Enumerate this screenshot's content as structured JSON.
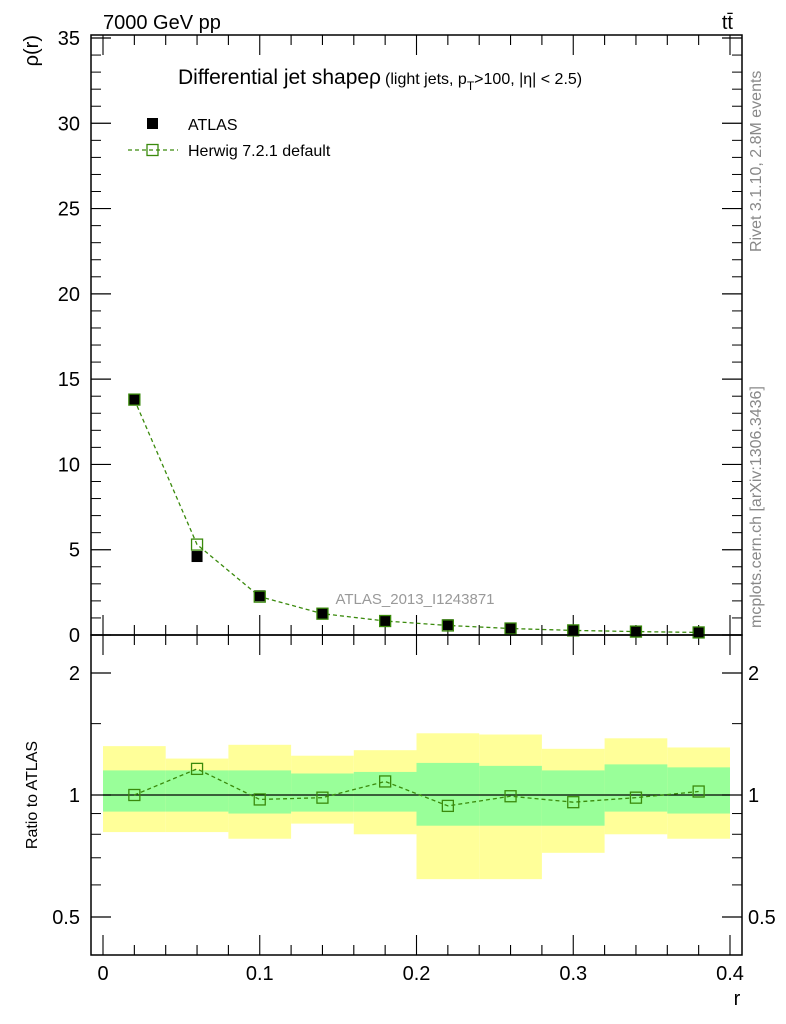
{
  "header": {
    "energy_label": "7000 GeV pp",
    "process_label": "tt̄",
    "side_info_top": "Rivet 3.1.10,  2.8M events",
    "side_info_bottom": "mcplots.cern.ch [arXiv:1306.3436]",
    "watermark": "ATLAS_2013_I1243871"
  },
  "chart_data": [
    {
      "type": "scatter",
      "title_main": "Differential jet shapeρ",
      "title_sub_1": "(light jets, p",
      "title_sub_T": "T",
      "title_sub_2": ">100, |η| < 2.5)",
      "ylabel": "ρ(r)",
      "xlabel": "",
      "xlim": [
        0,
        0.4
      ],
      "ylim": [
        0,
        35
      ],
      "yticks": [
        0,
        5,
        10,
        15,
        20,
        25,
        30,
        35
      ],
      "ytick_labels": [
        "0",
        "5",
        "10",
        "15",
        "20",
        "25",
        "30",
        "35"
      ],
      "grid": false,
      "legend_position": "top-left",
      "x": [
        0.02,
        0.06,
        0.1,
        0.14,
        0.18,
        0.22,
        0.26,
        0.3,
        0.34,
        0.38
      ],
      "series": [
        {
          "name": "ATLAS",
          "color": "#000000",
          "marker": "filled-square",
          "values": [
            13.8,
            4.6,
            2.3,
            1.25,
            0.8,
            0.6,
            0.38,
            0.28,
            0.2,
            0.15
          ]
        },
        {
          "name": "Herwig 7.2.1 default",
          "color": "#3a8a0c",
          "marker": "open-square-dashed-line",
          "values": [
            13.8,
            5.3,
            2.25,
            1.25,
            0.82,
            0.56,
            0.38,
            0.27,
            0.2,
            0.15
          ]
        }
      ]
    },
    {
      "type": "line",
      "ylabel": "Ratio to ATLAS",
      "xlabel": "r",
      "xlim": [
        0,
        0.4
      ],
      "ylim": [
        0.5,
        2.2
      ],
      "log_scale_y": true,
      "xticks": [
        0,
        0.1,
        0.2,
        0.3,
        0.4
      ],
      "xtick_labels": [
        "0",
        "0.1",
        "0.2",
        "0.3",
        "0.4"
      ],
      "yticks": [
        0.5,
        1,
        2
      ],
      "ytick_labels": [
        "0.5",
        "1",
        "2"
      ],
      "reference_line": 1,
      "bin_edges": [
        0,
        0.04,
        0.08,
        0.12,
        0.16,
        0.2,
        0.24,
        0.28,
        0.32,
        0.36,
        0.4
      ],
      "band_colors": {
        "inner": "#99ff99",
        "outer": "#ffff99"
      },
      "stat_band": {
        "lo": [
          0.91,
          0.91,
          0.9,
          0.91,
          0.91,
          0.84,
          0.84,
          0.84,
          0.91,
          0.9
        ],
        "hi": [
          1.15,
          1.15,
          1.15,
          1.13,
          1.14,
          1.2,
          1.18,
          1.15,
          1.19,
          1.17
        ]
      },
      "total_band": {
        "lo": [
          0.81,
          0.81,
          0.78,
          0.85,
          0.8,
          0.62,
          0.62,
          0.72,
          0.8,
          0.78
        ],
        "hi": [
          1.32,
          1.23,
          1.33,
          1.25,
          1.29,
          1.42,
          1.41,
          1.3,
          1.38,
          1.31
        ]
      },
      "x": [
        0.02,
        0.06,
        0.1,
        0.14,
        0.18,
        0.22,
        0.26,
        0.3,
        0.34,
        0.38
      ],
      "series": [
        {
          "name": "Herwig 7.2.1 default",
          "color": "#3a8a0c",
          "values": [
            1.0,
            1.16,
            0.975,
            0.985,
            1.08,
            0.94,
            0.993,
            0.96,
            0.985,
            1.02
          ]
        }
      ]
    }
  ]
}
